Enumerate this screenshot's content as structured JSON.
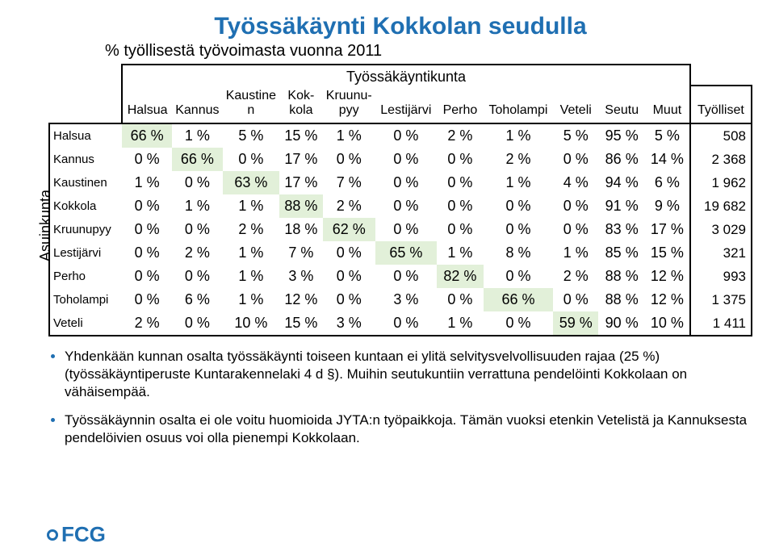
{
  "title": "Työssäkäynti Kokkolan seudulla",
  "subtitle": "% työllisestä työvoimasta vuonna 2011",
  "top_header": "Työssäkäyntikunta",
  "vlabel": "Asuinkunta",
  "columns": [
    "Halsua",
    "Kannus",
    "Kaustinen",
    "Kokkola",
    "Kruunupyy",
    "Lestijärvi",
    "Perho",
    "Toholampi",
    "Veteli",
    "Seutu",
    "Muut"
  ],
  "col_wraps": [
    [
      "Halsua"
    ],
    [
      "Kannus"
    ],
    [
      "Kaustine",
      "n"
    ],
    [
      "Kok-",
      "kola"
    ],
    [
      "Kruunu-",
      "pyy"
    ],
    [
      "Lestijärvi"
    ],
    [
      "Perho"
    ],
    [
      "Toholampi"
    ],
    [
      "Veteli"
    ],
    [
      "Seutu"
    ],
    [
      "Muut"
    ]
  ],
  "last_col": "Työlliset",
  "row_names": [
    "Halsua",
    "Kannus",
    "Kaustinen",
    "Kokkola",
    "Kruunupyy",
    "Lestijärvi",
    "Perho",
    "Toholampi",
    "Veteli"
  ],
  "cells": [
    [
      "66 %",
      "1 %",
      "5 %",
      "15 %",
      "1 %",
      "0 %",
      "2 %",
      "1 %",
      "5 %",
      "95 %",
      "5 %"
    ],
    [
      "0 %",
      "66 %",
      "0 %",
      "17 %",
      "0 %",
      "0 %",
      "0 %",
      "2 %",
      "0 %",
      "86 %",
      "14 %"
    ],
    [
      "1 %",
      "0 %",
      "63 %",
      "17 %",
      "7 %",
      "0 %",
      "0 %",
      "1 %",
      "4 %",
      "94 %",
      "6 %"
    ],
    [
      "0 %",
      "1 %",
      "1 %",
      "88 %",
      "2 %",
      "0 %",
      "0 %",
      "0 %",
      "0 %",
      "91 %",
      "9 %"
    ],
    [
      "0 %",
      "0 %",
      "2 %",
      "18 %",
      "62 %",
      "0 %",
      "0 %",
      "0 %",
      "0 %",
      "83 %",
      "17 %"
    ],
    [
      "0 %",
      "2 %",
      "1 %",
      "7 %",
      "0 %",
      "65 %",
      "1 %",
      "8 %",
      "1 %",
      "85 %",
      "15 %"
    ],
    [
      "0 %",
      "0 %",
      "1 %",
      "3 %",
      "0 %",
      "0 %",
      "82 %",
      "0 %",
      "2 %",
      "88 %",
      "12 %"
    ],
    [
      "0 %",
      "6 %",
      "1 %",
      "12 %",
      "0 %",
      "3 %",
      "0 %",
      "66 %",
      "0 %",
      "88 %",
      "12 %"
    ],
    [
      "2 %",
      "0 %",
      "10 %",
      "15 %",
      "3 %",
      "0 %",
      "1 %",
      "0 %",
      "59 %",
      "90 %",
      "10 %"
    ]
  ],
  "totals": [
    "508",
    "2 368",
    "1 962",
    "19 682",
    "3 029",
    "321",
    "993",
    "1 375",
    "1 411"
  ],
  "highlight_color": "#e2f0d9",
  "title_color": "#1f6fb2",
  "bullet1": "Yhdenkään kunnan osalta työssäkäynti toiseen kuntaan ei ylitä selvitysvelvollisuuden rajaa (25 %) (työssäkäyntiperuste Kuntarakennelaki 4 d §). Muihin seutukuntiin verrattuna pendelöinti Kokkolaan on vähäisempää.",
  "bullet2": "Työssäkäynnin osalta ei ole voitu huomioida JYTA:n työpaikkoja. Tämän vuoksi etenkin Vetelistä ja Kannuksesta pendelöivien osuus voi olla pienempi Kokkolaan.",
  "logo_text": "FCG"
}
